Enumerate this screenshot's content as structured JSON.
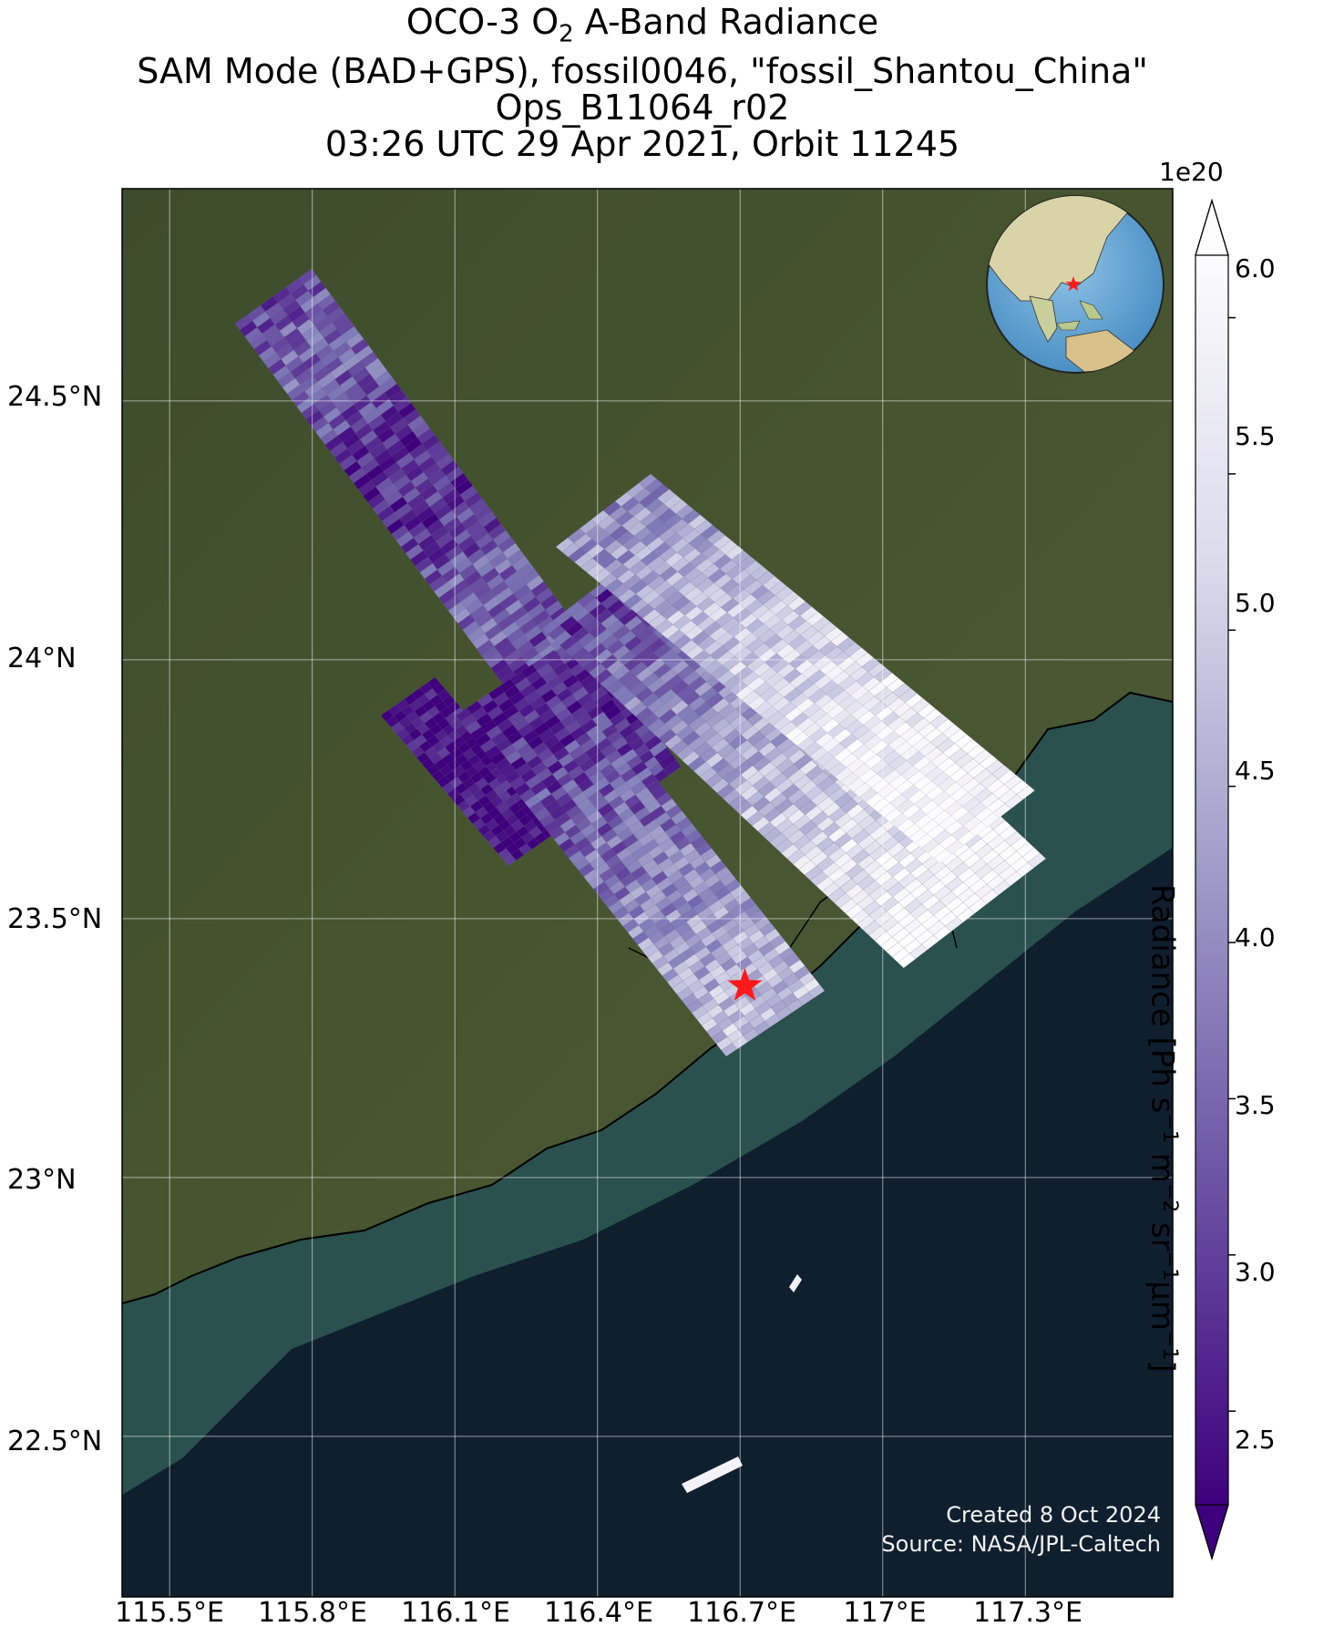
{
  "title": {
    "line1_prefix": "OCO-3 O",
    "line1_subscript": "2",
    "line1_suffix": " A-Band Radiance",
    "line2": "SAM Mode (BAD+GPS), fossil0046, \"fossil_Shantou_China\"",
    "line3": "Ops_B11064_r02",
    "line4": "03:26 UTC 29 Apr 2021, Orbit 11245"
  },
  "axes": {
    "lat_ticks": [
      "24.5°N",
      "24°N",
      "23.5°N",
      "23°N",
      "22.5°N"
    ],
    "lat_values": [
      24.5,
      24.0,
      23.5,
      23.0,
      22.5
    ],
    "lon_ticks": [
      "115.5°E",
      "115.8°E",
      "116.1°E",
      "116.4°E",
      "116.7°E",
      "117°E",
      "117.3°E"
    ],
    "lon_values": [
      115.5,
      115.8,
      116.1,
      116.4,
      116.7,
      117.0,
      117.3
    ],
    "lat_range": [
      22.19,
      24.91
    ],
    "lon_range": [
      115.4,
      117.61
    ],
    "gridlines": true
  },
  "target": {
    "name": "fossil_Shantou_China",
    "lat": 23.37,
    "lon": 116.71,
    "marker": "red-star"
  },
  "colorbar": {
    "label": "Radiance [Ph s⁻¹ m⁻² sr⁻¹μm⁻¹]",
    "label_base": "Radiance [Ph s",
    "label_parts": [
      "−1",
      " m",
      "−2",
      " sr",
      "−1",
      "μm",
      "−1",
      "]"
    ],
    "exponent": "1e20",
    "ticks": [
      "6.0",
      "5.5",
      "5.0",
      "4.5",
      "4.0",
      "3.5",
      "3.0",
      "2.5"
    ],
    "tick_values": [
      6.0,
      5.5,
      5.0,
      4.5,
      4.0,
      3.5,
      3.0,
      2.5
    ],
    "range": [
      2.2,
      6.2
    ],
    "colormap": "Purples_r",
    "extend": "both",
    "color_low": "#3f007d",
    "color_high": "#fcfbfd"
  },
  "inset_globe": {
    "region": "East Asia / Western Pacific",
    "marker": "red-star"
  },
  "credit": {
    "line1": "Created 8 Oct 2024",
    "line2": "Source: NASA/JPL-Caltech"
  },
  "colors": {
    "land": "#3b4a2c",
    "ocean": "#0f1f2e",
    "coast_water": "#2f5a52",
    "star": "#ff1a1a"
  }
}
